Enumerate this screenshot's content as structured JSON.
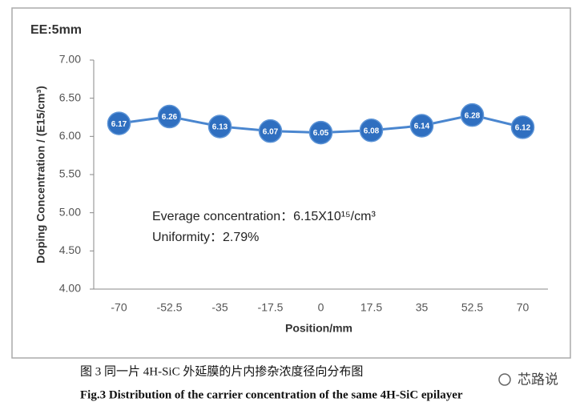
{
  "chart_data": {
    "type": "line",
    "title": "EE:5mm",
    "x_label": "Position/mm",
    "y_label": "Doping Concentration / (E15/cm³)",
    "categories": [
      "-70",
      "-52.5",
      "-35",
      "-17.5",
      "0",
      "17.5",
      "35",
      "52.5",
      "70"
    ],
    "series": [
      {
        "name": "Doping concentration",
        "color": "#2f6fc0",
        "values": [
          6.17,
          6.26,
          6.13,
          6.07,
          6.05,
          6.08,
          6.14,
          6.28,
          6.12
        ]
      }
    ],
    "ylim": [
      4,
      7
    ],
    "yticks": [
      {
        "value": 4,
        "label": "4.00"
      },
      {
        "value": 4.5,
        "label": "4.50"
      },
      {
        "value": 5,
        "label": "5.00"
      },
      {
        "value": 5.5,
        "label": "5.50"
      },
      {
        "value": 6,
        "label": "6.00"
      },
      {
        "value": 6.5,
        "label": "6.50"
      },
      {
        "value": 7,
        "label": "7.00"
      }
    ],
    "grid": false,
    "annotations": [
      "Everage concentration：6.15X10¹⁵/cm³",
      "Uniformity：2.79%"
    ]
  },
  "caption": {
    "chinese": "图 3 同一片 4H-SiC 外延膜的片内掺杂浓度径向分布图",
    "english": "Fig.3 Distribution of the carrier concentration of the same 4H-SiC epilayer"
  },
  "watermark": "芯路说"
}
